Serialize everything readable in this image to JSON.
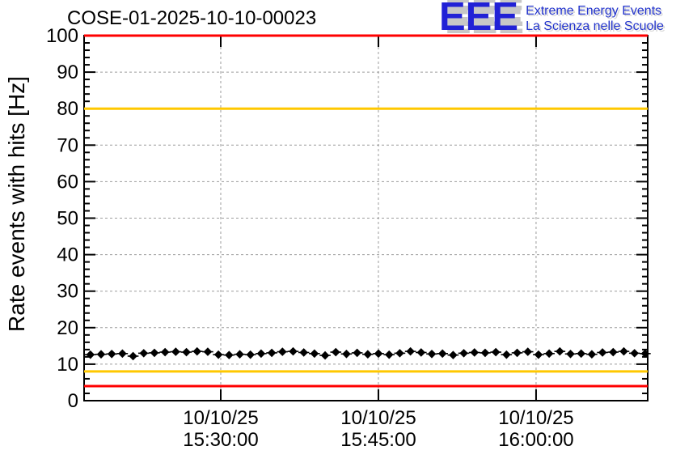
{
  "header": {
    "title": "COSE-01-2025-10-10-00023",
    "logo": {
      "acronym": "EEE",
      "line1": "Extreme Energy Events",
      "line2": "La Scienza nelle Scuole",
      "color": "#2121d6",
      "text_color": "#2233cc",
      "shadow_color": "#c7c7c7"
    }
  },
  "chart_data": {
    "type": "scatter",
    "title": "COSE-01-2025-10-10-00023",
    "xlabel": "",
    "ylabel": "Rate events with hits [Hz]",
    "ylim": [
      0,
      100
    ],
    "y_major_ticks": [
      0,
      10,
      20,
      30,
      40,
      50,
      60,
      70,
      80,
      90,
      100
    ],
    "y_minor_step": 2,
    "grid": {
      "style": "dashed",
      "color": "#9c9c9c"
    },
    "x_range_minutes": [
      917.0,
      970.62
    ],
    "x_ticks": [
      {
        "minutes": 930,
        "date": "10/10/25",
        "time": "15:30:00"
      },
      {
        "minutes": 945,
        "date": "10/10/25",
        "time": "15:45:00"
      },
      {
        "minutes": 960,
        "date": "10/10/25",
        "time": "16:00:00"
      }
    ],
    "threshold_lines": [
      {
        "value": 100,
        "color": "#ff0000"
      },
      {
        "value": 80,
        "color": "#ffc800"
      },
      {
        "value": 8,
        "color": "#ffc800"
      },
      {
        "value": 4,
        "color": "#ff0000"
      }
    ],
    "series": [
      {
        "name": "rate-events-with-hits",
        "marker": "diamond",
        "color": "#000000",
        "x_start_minutes": 917.6,
        "x_step_minutes": 1.015,
        "values": [
          12.6,
          12.7,
          12.8,
          12.9,
          12.2,
          13.0,
          13.1,
          13.3,
          13.4,
          13.3,
          13.5,
          13.4,
          12.6,
          12.5,
          12.7,
          12.6,
          12.9,
          13.1,
          13.4,
          13.5,
          13.2,
          12.9,
          12.4,
          13.3,
          12.8,
          13.1,
          12.7,
          12.9,
          12.6,
          13.0,
          13.5,
          13.2,
          12.8,
          12.9,
          12.5,
          13.0,
          13.2,
          13.1,
          13.3,
          12.6,
          13.1,
          13.4,
          12.6,
          12.9,
          13.5,
          12.8,
          12.9,
          12.7,
          13.2,
          13.3,
          13.5,
          13.0,
          12.9
        ]
      }
    ]
  }
}
